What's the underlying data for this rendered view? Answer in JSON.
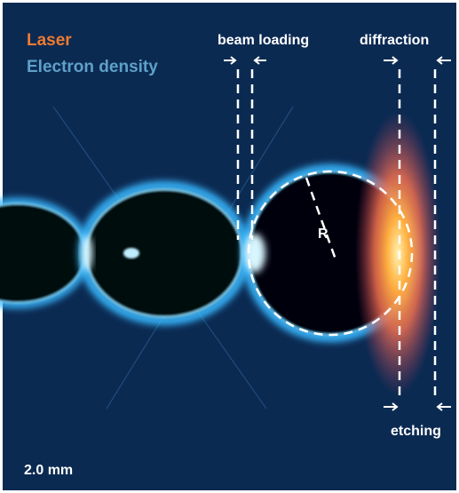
{
  "legend": {
    "laser": "Laser",
    "electron_density": "Electron density"
  },
  "annotations": {
    "beam_loading": "beam loading",
    "diffraction": "diffraction",
    "radius": "R",
    "etching": "etching"
  },
  "scale_bar": "2.0 mm"
}
